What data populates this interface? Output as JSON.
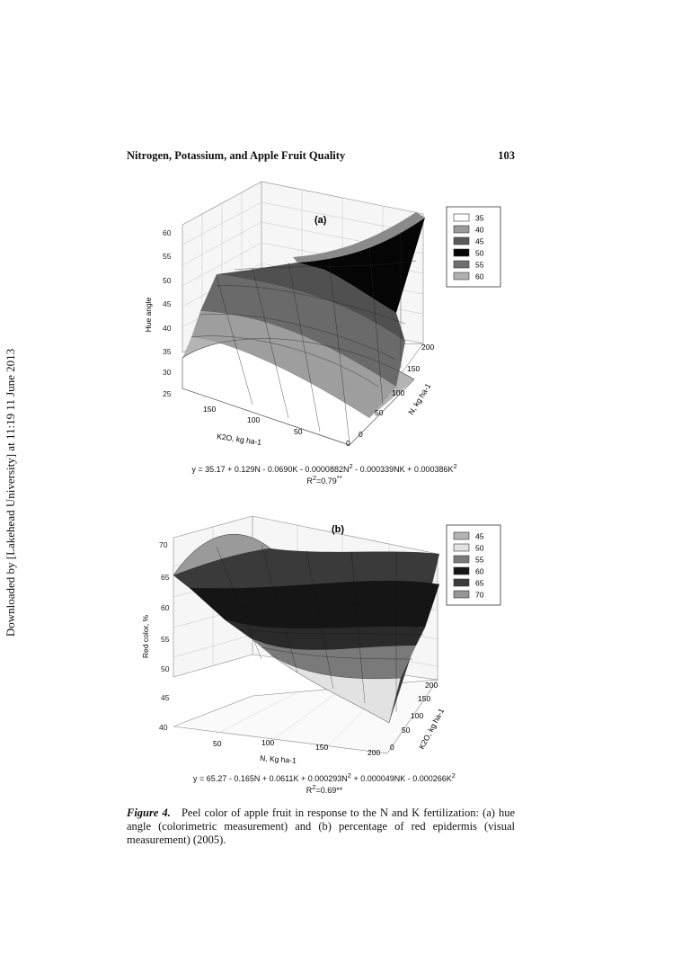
{
  "side_note": "Downloaded by [Lakehead University] at 11:19 11 June 2013",
  "header": {
    "running_title": "Nitrogen, Potassium, and Apple Fruit Quality",
    "page_number": "103"
  },
  "chart_data": [
    {
      "type": "surface3d",
      "panel": "(a)",
      "zlabel": "Hue angle",
      "xlabel": "K2O, kg ha-1",
      "ylabel": "N, kg ha-1",
      "zticks": [
        "25",
        "30",
        "35",
        "40",
        "45",
        "50",
        "55",
        "60"
      ],
      "xticks": [
        "150",
        "100",
        "50",
        "0"
      ],
      "yticks": [
        "0",
        "50",
        "100",
        "150",
        "200"
      ],
      "legend": [
        "35",
        "40",
        "45",
        "50",
        "55",
        "60"
      ],
      "legend_colors": [
        "#ffffff",
        "#9a9a9a",
        "#5a5a5a",
        "#050505",
        "#6e6e6e",
        "#b0b0b0"
      ],
      "equation": {
        "model": "y = 35.17 + 0.129N - 0.0690K - 0.0000882N",
        "model_tail": " - 0.000339NK + 0.000386K",
        "r2": "R",
        "r2_value": "=0.79",
        "significance": "**"
      }
    },
    {
      "type": "surface3d",
      "panel": "(b)",
      "zlabel": "Red color, %",
      "xlabel": "N, Kg ha-1",
      "ylabel": "K2O, kg ha-1",
      "zticks": [
        "40",
        "45",
        "50",
        "55",
        "60",
        "65",
        "70"
      ],
      "xticks": [
        "50",
        "100",
        "150",
        "200"
      ],
      "yticks": [
        "0",
        "50",
        "100",
        "150",
        "200"
      ],
      "legend": [
        "45",
        "50",
        "55",
        "60",
        "65",
        "70"
      ],
      "legend_colors": [
        "#b4b4b4",
        "#e2e2e2",
        "#7a7a7a",
        "#151515",
        "#3c3c3c",
        "#959595"
      ],
      "equation": {
        "model": "y = 65.27 - 0.165N + 0.0611K + 0.000293N",
        "model_tail": " + 0.000049NK - 0.000266K",
        "r2": "R",
        "r2_value": "=0.69**",
        "significance": ""
      }
    }
  ],
  "caption": {
    "label": "Figure 4.",
    "text": "Peel color of apple fruit in response to the N and K fertilization: (a) hue angle (colorimetric measurement) and (b) percentage of red epidermis (visual measurement) (2005)."
  }
}
